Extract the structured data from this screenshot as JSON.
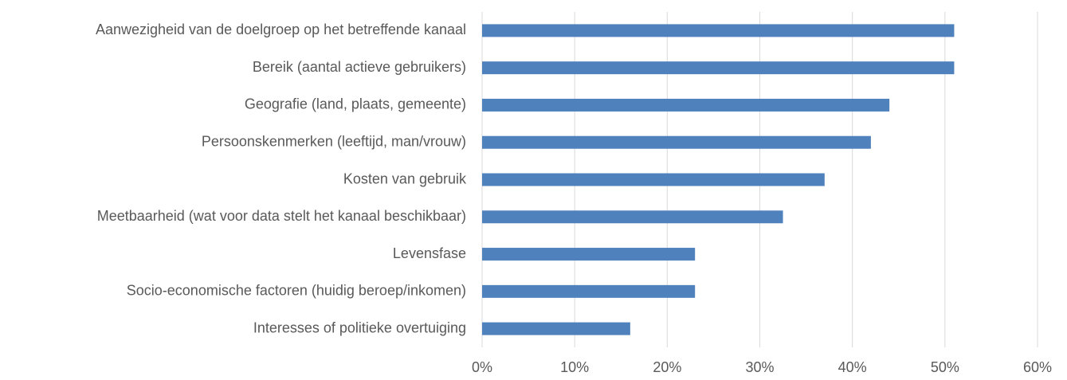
{
  "chart_data": {
    "type": "bar",
    "orientation": "horizontal",
    "categories": [
      "Aanwezigheid van de doelgroep op het betreffende kanaal",
      "Bereik (aantal actieve gebruikers)",
      "Geografie (land, plaats, gemeente)",
      "Persoonskenmerken (leeftijd, man/vrouw)",
      "Kosten van gebruik",
      "Meetbaarheid (wat voor data stelt het kanaal beschikbaar)",
      "Levensfase",
      "Socio-economische factoren (huidig beroep/inkomen)",
      "Interesses of politieke overtuiging"
    ],
    "values": [
      51,
      51,
      44,
      42,
      37,
      32.5,
      23,
      23,
      16
    ],
    "color": "#4f81bd",
    "xlim": [
      0,
      60
    ],
    "xticks": [
      {
        "value": 0,
        "label": "0%"
      },
      {
        "value": 10,
        "label": "10%"
      },
      {
        "value": 20,
        "label": "20%"
      },
      {
        "value": 30,
        "label": "30%"
      },
      {
        "value": 40,
        "label": "40%"
      },
      {
        "value": 50,
        "label": "50%"
      },
      {
        "value": 60,
        "label": "60%"
      }
    ],
    "grid": true
  }
}
